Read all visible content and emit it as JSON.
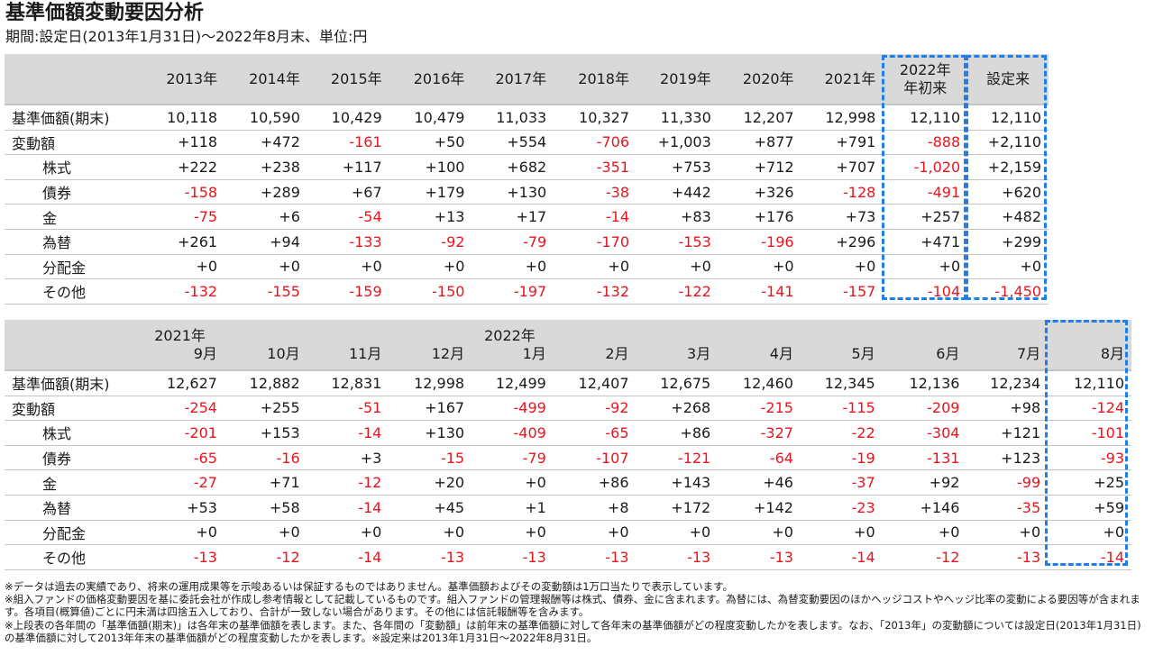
{
  "page": {
    "title": "基準価額変動要因分析",
    "subtitle": "期間:設定日(2013年1月31日)～2022年8月末、単位:円"
  },
  "annual": {
    "columns": [
      "2013年",
      "2014年",
      "2015年",
      "2016年",
      "2017年",
      "2018年",
      "2019年",
      "2020年",
      "2021年",
      "2022年\n年初来",
      "設定来"
    ],
    "rows": [
      {
        "label": "基準価額(期末)",
        "values": [
          "10,118",
          "10,590",
          "10,429",
          "10,479",
          "11,033",
          "10,327",
          "11,330",
          "12,207",
          "12,998",
          "12,110",
          "12,110"
        ]
      },
      {
        "label": "変動額",
        "values": [
          "+118",
          "+472",
          "-161",
          "+50",
          "+554",
          "-706",
          "+1,003",
          "+877",
          "+791",
          "-888",
          "+2,110"
        ]
      },
      {
        "label": "株式",
        "values": [
          "+222",
          "+238",
          "+117",
          "+100",
          "+682",
          "-351",
          "+753",
          "+712",
          "+707",
          "-1,020",
          "+2,159"
        ]
      },
      {
        "label": "債券",
        "values": [
          "-158",
          "+289",
          "+67",
          "+179",
          "+130",
          "-38",
          "+442",
          "+326",
          "-128",
          "-491",
          "+620"
        ]
      },
      {
        "label": "金",
        "values": [
          "-75",
          "+6",
          "-54",
          "+13",
          "+17",
          "-14",
          "+83",
          "+176",
          "+73",
          "+257",
          "+482"
        ]
      },
      {
        "label": "為替",
        "values": [
          "+261",
          "+94",
          "-133",
          "-92",
          "-79",
          "-170",
          "-153",
          "-196",
          "+296",
          "+471",
          "+299"
        ]
      },
      {
        "label": "分配金",
        "values": [
          "+0",
          "+0",
          "+0",
          "+0",
          "+0",
          "+0",
          "+0",
          "+0",
          "+0",
          "+0",
          "+0"
        ]
      },
      {
        "label": "その他",
        "values": [
          "-132",
          "-155",
          "-159",
          "-150",
          "-197",
          "-132",
          "-122",
          "-141",
          "-157",
          "-104",
          "-1,450"
        ]
      }
    ]
  },
  "monthly": {
    "year_labels": {
      "y2021": "2021年",
      "y2022": "2022年"
    },
    "columns": [
      "9月",
      "10月",
      "11月",
      "12月",
      "1月",
      "2月",
      "3月",
      "4月",
      "5月",
      "6月",
      "7月",
      "8月"
    ],
    "rows": [
      {
        "label": "基準価額(期末)",
        "values": [
          "12,627",
          "12,882",
          "12,831",
          "12,998",
          "12,499",
          "12,407",
          "12,675",
          "12,460",
          "12,345",
          "12,136",
          "12,234",
          "12,110"
        ]
      },
      {
        "label": "変動額",
        "values": [
          "-254",
          "+255",
          "-51",
          "+167",
          "-499",
          "-92",
          "+268",
          "-215",
          "-115",
          "-209",
          "+98",
          "-124"
        ]
      },
      {
        "label": "株式",
        "values": [
          "-201",
          "+153",
          "-14",
          "+130",
          "-409",
          "-65",
          "+86",
          "-327",
          "-22",
          "-304",
          "+121",
          "-101"
        ]
      },
      {
        "label": "債券",
        "values": [
          "-65",
          "-16",
          "+3",
          "-15",
          "-79",
          "-107",
          "-121",
          "-64",
          "-19",
          "-131",
          "+123",
          "-93"
        ]
      },
      {
        "label": "金",
        "values": [
          "-27",
          "+71",
          "-12",
          "+20",
          "+0",
          "+86",
          "+143",
          "+46",
          "-37",
          "+92",
          "-99",
          "+25"
        ]
      },
      {
        "label": "為替",
        "values": [
          "+53",
          "+58",
          "-14",
          "+45",
          "+1",
          "+8",
          "+172",
          "+142",
          "-23",
          "+146",
          "-35",
          "+59"
        ]
      },
      {
        "label": "分配金",
        "values": [
          "+0",
          "+0",
          "+0",
          "+0",
          "+0",
          "+0",
          "+0",
          "+0",
          "+0",
          "+0",
          "+0",
          "+0"
        ]
      },
      {
        "label": "その他",
        "values": [
          "-13",
          "-12",
          "-14",
          "-13",
          "-13",
          "-13",
          "-13",
          "-13",
          "-14",
          "-12",
          "-13",
          "-14"
        ]
      }
    ]
  },
  "notes": [
    "※データは過去の実績であり、将来の運用成果等を示唆あるいは保証するものではありません。基準価額およびその変動額は1万口当たりで表示しています。",
    "※組入ファンドの価格変動要因を基に委託会社が作成し参考情報として記載しているものです。組入ファンドの管理報酬等は株式、債券、金に含まれます。為替には、為替変動要因のほかヘッジコストやヘッジ比率の変動による要因等が含まれます。各項目(概算値)ごとに円未満は四捨五入しており、合計が一致しない場合があります。その他には信託報酬等を含みます。",
    "※上段表の各年間の「基準価額(期末)」は各年末の基準価額を表します。また、各年間の「変動額」は前年末の基準価額に対して各年末の基準価額がどの程度変動したかを表します。なお、「2013年」の変動額については設定日(2013年1月31日)の基準価額に対して2013年年末の基準価額がどの程度変動したかを表します。※設定来は2013年1月31日～2022年8月31日。"
  ],
  "colors": {
    "header_bg": "#d9d9d9",
    "negative": "#e8141e",
    "highlight": "#1e7fe8"
  }
}
